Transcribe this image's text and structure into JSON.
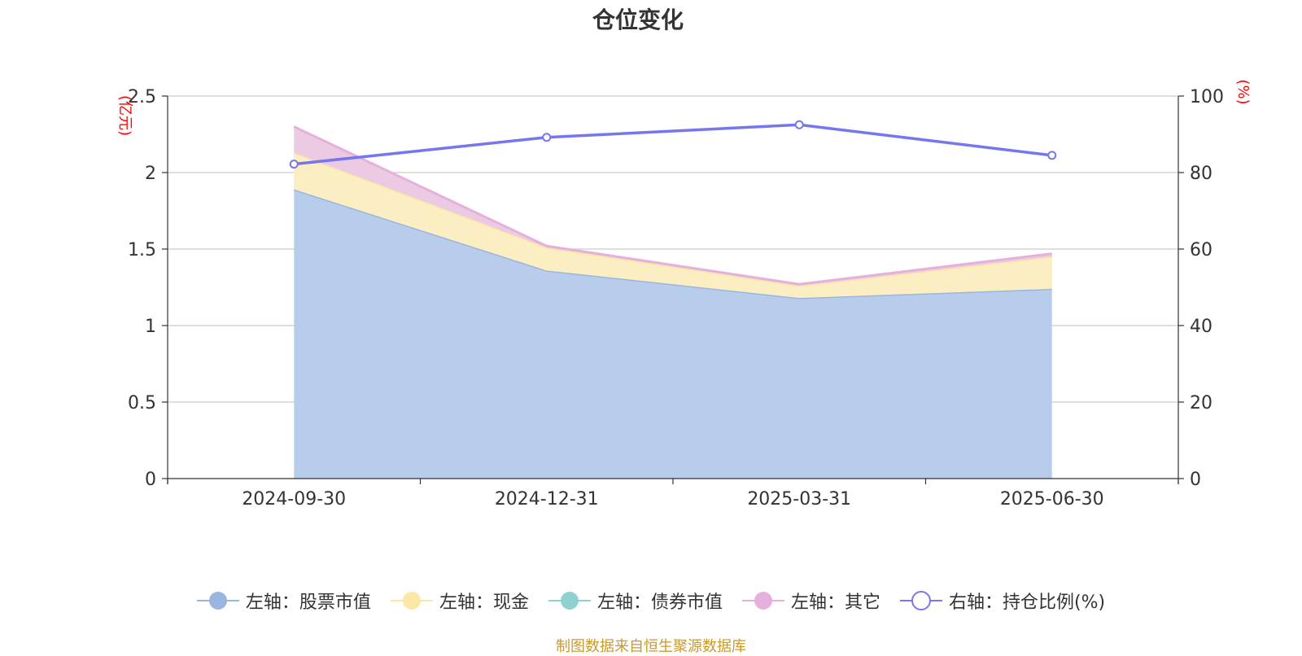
{
  "title": "仓位变化",
  "source": "制图数据来自恒生聚源数据库",
  "chart_data": {
    "type": "area",
    "title": "仓位变化",
    "x": [
      "2024-09-30",
      "2024-12-31",
      "2025-03-31",
      "2025-06-30"
    ],
    "left_axis": {
      "unit": "(亿元)",
      "ylim": [
        0,
        2.5
      ],
      "ticks": [
        "0",
        "0.5",
        "1",
        "1.5",
        "2",
        "2.5"
      ]
    },
    "right_axis": {
      "unit": "(%)",
      "ylim": [
        0,
        100
      ],
      "ticks": [
        "0",
        "20",
        "40",
        "60",
        "80",
        "100"
      ]
    },
    "series": [
      {
        "name": "左轴：股票市值",
        "axis": "left",
        "stack": true,
        "values": [
          1.89,
          1.36,
          1.18,
          1.24
        ],
        "line_color": "#9ab6e0",
        "fill_color": "#b8cdeb"
      },
      {
        "name": "左轴：现金",
        "axis": "left",
        "stack": true,
        "values": [
          0.24,
          0.15,
          0.08,
          0.21
        ],
        "line_color": "#fbe8a6",
        "fill_color": "#faeec2"
      },
      {
        "name": "左轴：债券市值",
        "axis": "left",
        "stack": true,
        "values": [
          0,
          0,
          0,
          0
        ],
        "line_color": "#8fd1d1",
        "fill_color": "#8fd1d1"
      },
      {
        "name": "左轴：其它",
        "axis": "left",
        "stack": true,
        "values": [
          0.17,
          0.01,
          0.01,
          0.02
        ],
        "line_color": "#e6b0dc",
        "fill_color": "#eccae4"
      },
      {
        "name": "右轴：持仓比例(%)",
        "axis": "right",
        "stack": false,
        "type": "line",
        "values": [
          82.2,
          89.2,
          92.5,
          84.5
        ],
        "line_color": "#7676ee"
      }
    ],
    "grid": true,
    "legend_position": "bottom"
  }
}
